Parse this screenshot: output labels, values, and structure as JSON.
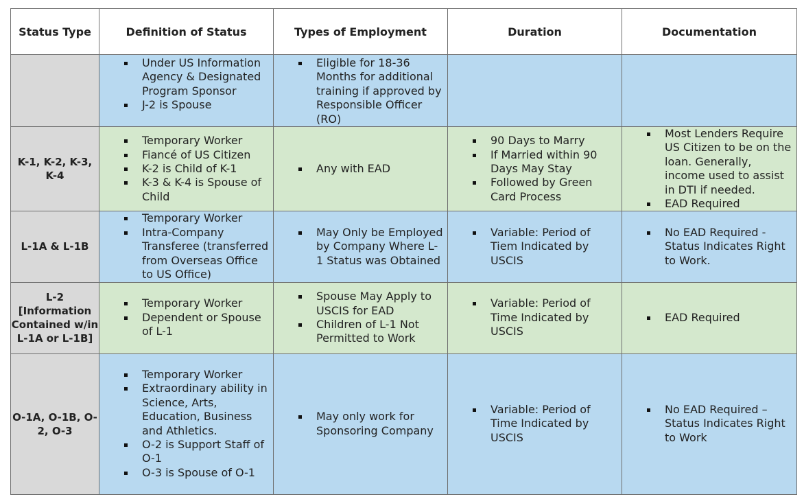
{
  "headers": [
    "Status Type",
    "Definition of Status",
    "Types of Employment",
    "Duration",
    "Documentation"
  ],
  "rows": [
    {
      "type": "",
      "color": "#b8d9f0",
      "definition": [
        "Under US Information Agency & Designated Program Sponsor",
        "J-2 is Spouse"
      ],
      "employment": [
        "Eligible for 18-36 Months for additional training if approved by Responsible Officer (RO)"
      ],
      "duration": [],
      "documentation": []
    },
    {
      "type": "K-1, K-2, K-3, K-4",
      "color": "#d4e8cd",
      "definition": [
        "Temporary Worker",
        "Fiancé of US Citizen",
        "K-2 is Child of K-1",
        "K-3 & K-4 is Spouse of Child"
      ],
      "employment": [
        "Any with EAD"
      ],
      "duration": [
        "90 Days to Marry",
        "If Married within 90 Days May Stay",
        "Followed by Green Card Process"
      ],
      "documentation": [
        "Most Lenders Require US Citizen to be on the loan. Generally, income used to assist in DTI if needed.",
        "EAD Required"
      ]
    },
    {
      "type": "L-1A & L-1B",
      "color": "#b8d9f0",
      "definition": [
        "Temporary Worker",
        "Intra-Company Transferee (transferred from Overseas Office to US Office)"
      ],
      "employment": [
        "May Only be Employed by Company Where L-1 Status was Obtained"
      ],
      "duration": [
        "Variable: Period of Tiem Indicated by USCIS"
      ],
      "documentation": [
        "No EAD Required - Status Indicates Right to Work."
      ]
    },
    {
      "type": "L-2 [Information Contained w/in L-1A or L-1B]",
      "color": "#d4e8cd",
      "definition": [
        "Temporary Worker",
        "Dependent or Spouse of L-1"
      ],
      "employment": [
        "Spouse May Apply to USCIS for EAD",
        "Children of L-1 Not Permitted to Work"
      ],
      "duration": [
        "Variable: Period of Time Indicated by USCIS"
      ],
      "documentation": [
        "EAD Required"
      ]
    },
    {
      "type": "O-1A, O-1B, O-2, O-3",
      "color": "#b8d9f0",
      "definition": [
        "Temporary Worker",
        "Extraordinary ability in Science, Arts, Education, Business and Athletics.",
        "O-2 is Support Staff of O-1",
        "O-3 is Spouse of O-1"
      ],
      "employment": [
        "May only work for Sponsoring Company"
      ],
      "duration": [
        "Variable: Period of Time Indicated by USCIS"
      ],
      "documentation": [
        "No EAD Required – Status Indicates Right to Work"
      ]
    }
  ]
}
